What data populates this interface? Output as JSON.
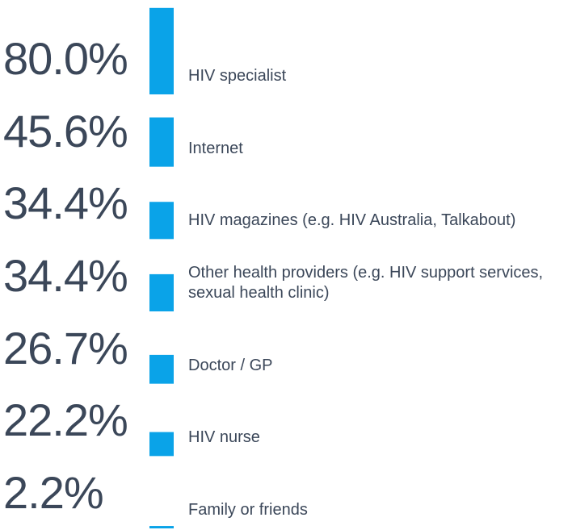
{
  "chart_data": {
    "type": "bar",
    "categories": [
      "HIV specialist",
      "Internet",
      "HIV magazines (e.g. HIV Australia, Talkabout)",
      "Other health providers (e.g. HIV support services, sexual health clinic)",
      "Doctor / GP",
      "HIV nurse",
      "Family or friends"
    ],
    "values": [
      80.0,
      45.6,
      34.4,
      34.4,
      26.7,
      22.2,
      2.2
    ],
    "value_labels": [
      "80.0%",
      "45.6%",
      "34.4%",
      "34.4%",
      "26.7%",
      "22.2%",
      "2.2%"
    ],
    "color": "#0aa3e8"
  }
}
